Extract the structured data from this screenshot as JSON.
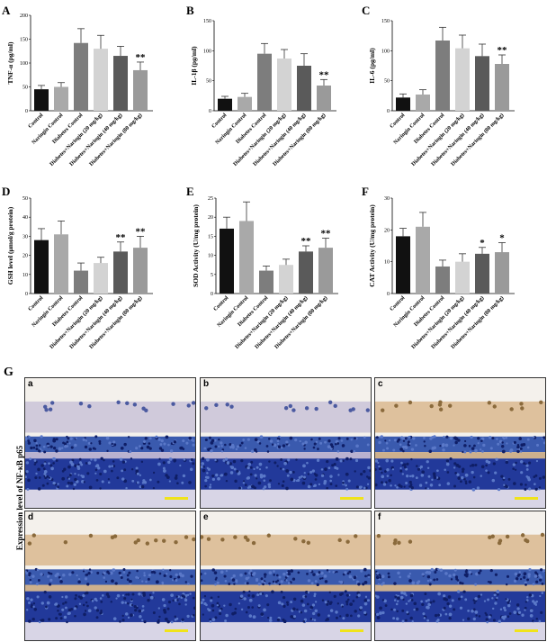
{
  "colors": [
    "#111111",
    "#a9a9a9",
    "#7d7d7d",
    "#d3d3d3",
    "#5a5a5a",
    "#9a9a9a"
  ],
  "categories": [
    "Control",
    "Naringin Control",
    "Diabetes Control",
    "Diabetes+Naringin (20 mg/kg)",
    "Diabetes+Naringin (40 mg/kg)",
    "Diabetes+Naringin (80 mg/kg)"
  ],
  "chart_data": [
    {
      "panel": "A",
      "type": "bar",
      "ylabel": "TNF-α (pg/ml)",
      "ylim": [
        0,
        200
      ],
      "yticks": [
        "0",
        "50",
        "100",
        "150",
        "200"
      ],
      "values": [
        45,
        50,
        142,
        130,
        115,
        85
      ],
      "errors": [
        8,
        9,
        30,
        28,
        20,
        17
      ],
      "annotations": [
        "",
        "",
        "",
        "",
        "",
        "**"
      ]
    },
    {
      "panel": "B",
      "type": "bar",
      "ylabel": "IL-1β (pg/ml)",
      "ylim": [
        0,
        150
      ],
      "yticks": [
        "0",
        "50",
        "100",
        "150"
      ],
      "values": [
        20,
        23,
        95,
        87,
        75,
        42
      ],
      "errors": [
        4,
        6,
        17,
        15,
        20,
        10
      ],
      "annotations": [
        "",
        "",
        "",
        "",
        "",
        "**"
      ]
    },
    {
      "panel": "C",
      "type": "bar",
      "ylabel": "IL-6 (pg/ml)",
      "ylim": [
        0,
        150
      ],
      "yticks": [
        "0",
        "50",
        "100",
        "150"
      ],
      "values": [
        22,
        27,
        117,
        104,
        91,
        78
      ],
      "errors": [
        6,
        8,
        22,
        22,
        20,
        15
      ],
      "annotations": [
        "",
        "",
        "",
        "",
        "",
        "**"
      ]
    },
    {
      "panel": "D",
      "type": "bar",
      "ylabel": "GSH level (μmol/g protein)",
      "ylim": [
        0,
        50
      ],
      "yticks": [
        "0",
        "10",
        "20",
        "30",
        "40",
        "50"
      ],
      "values": [
        28,
        31,
        12,
        16,
        22,
        24
      ],
      "errors": [
        6,
        7,
        4,
        3,
        5,
        6
      ],
      "annotations": [
        "",
        "",
        "",
        "",
        "**",
        "**"
      ]
    },
    {
      "panel": "E",
      "type": "bar",
      "ylabel": "SOD Activity (U/mg protein)",
      "ylim": [
        0,
        25
      ],
      "yticks": [
        "0",
        "5",
        "10",
        "15",
        "20",
        "25"
      ],
      "values": [
        17,
        19,
        6,
        7.5,
        11,
        12
      ],
      "errors": [
        3,
        5,
        1.2,
        1.5,
        1.5,
        2.5
      ],
      "annotations": [
        "",
        "",
        "",
        "",
        "**",
        "**"
      ]
    },
    {
      "panel": "F",
      "type": "bar",
      "ylabel": "CAT Activity (U/mg protein)",
      "ylim": [
        0,
        30
      ],
      "yticks": [
        "0",
        "10",
        "20",
        "30"
      ],
      "values": [
        18,
        21,
        8.5,
        10,
        12.5,
        13
      ],
      "errors": [
        2.5,
        4.5,
        2,
        2.5,
        2,
        3
      ],
      "annotations": [
        "",
        "",
        "",
        "",
        "*",
        "*"
      ]
    }
  ],
  "histology": {
    "label": "G",
    "ylabel": "Expression level of NF-κB p65",
    "panels": [
      "a",
      "b",
      "c",
      "d",
      "e",
      "f"
    ]
  }
}
